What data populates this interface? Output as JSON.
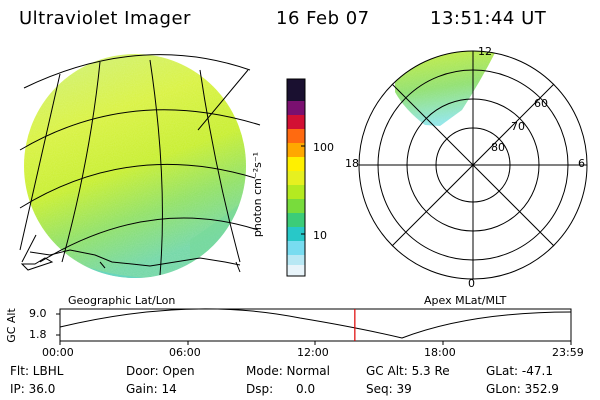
{
  "header": {
    "title": "Ultraviolet Imager",
    "date": "16 Feb 07",
    "time": "13:51:44 UT"
  },
  "colorbar": {
    "unit_label": "photon cm⁻²s⁻¹",
    "ticks": [
      "100",
      "10"
    ]
  },
  "polar": {
    "lat_labels": [
      "60",
      "70",
      "80"
    ],
    "mlt_labels": [
      "12",
      "18",
      "6",
      "0"
    ]
  },
  "map_labels": {
    "geo": "Geographic Lat/Lon",
    "apex": "Apex MLat/MLT"
  },
  "altitude_plot": {
    "ylabel": "GC Alt",
    "yticks": [
      "9.0",
      "1.8"
    ],
    "xticks": [
      "00:00",
      "06:00",
      "12:00",
      "18:00",
      "23:59"
    ],
    "marker_time_fraction": 0.577
  },
  "info": {
    "filter": "Flt: LBHL",
    "ip": "IP: 36.0",
    "door": "Door: Open",
    "gain": "Gain: 14",
    "mode": "Mode: Normal",
    "dsp_label": "Dsp:",
    "dsp_value": "0.0",
    "gc_alt": "GC Alt: 5.3 Re",
    "seq": "Seq: 39",
    "glat": "GLat: -47.1",
    "glon": "GLon: 352.9"
  },
  "colors": {
    "marker": "#dd0000",
    "grid": "#000000"
  }
}
